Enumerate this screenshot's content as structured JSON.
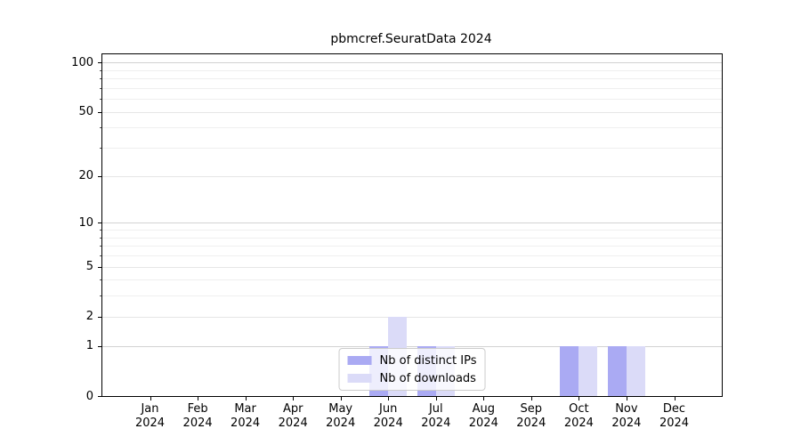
{
  "chart_data": {
    "type": "bar",
    "title": "pbmcref.SeuratData 2024",
    "categories": [
      "Jan",
      "Feb",
      "Mar",
      "Apr",
      "May",
      "Jun",
      "Jul",
      "Aug",
      "Sep",
      "Oct",
      "Nov",
      "Dec"
    ],
    "category_year": "2024",
    "series": [
      {
        "name": "Nb of distinct IPs",
        "color": "#aaaaf3",
        "values": [
          0,
          0,
          0,
          0,
          0,
          1,
          1,
          0,
          0,
          1,
          1,
          0
        ]
      },
      {
        "name": "Nb of downloads",
        "color": "#dbdbf8",
        "values": [
          0,
          0,
          0,
          0,
          0,
          2,
          1,
          0,
          0,
          1,
          1,
          0
        ]
      }
    ],
    "y_axis": {
      "scale": "log1p",
      "tick_labels": [
        "0",
        "1",
        "2",
        "5",
        "10",
        "20",
        "50",
        "100"
      ],
      "tick_values": [
        0,
        1,
        2,
        5,
        10,
        20,
        50,
        100
      ],
      "minor_tick_values": [
        3,
        4,
        6,
        7,
        8,
        9,
        30,
        40,
        60,
        70,
        80,
        90
      ],
      "decade_values": [
        1,
        10,
        100
      ],
      "ylim": [
        0,
        113
      ]
    },
    "legend": {
      "position": "lower center"
    },
    "grid": true,
    "colors": {
      "grid_decade": "#d2d2d2",
      "grid_mid": "#e6e6e6",
      "grid_minor": "#efefef",
      "spine": "#000000"
    }
  }
}
